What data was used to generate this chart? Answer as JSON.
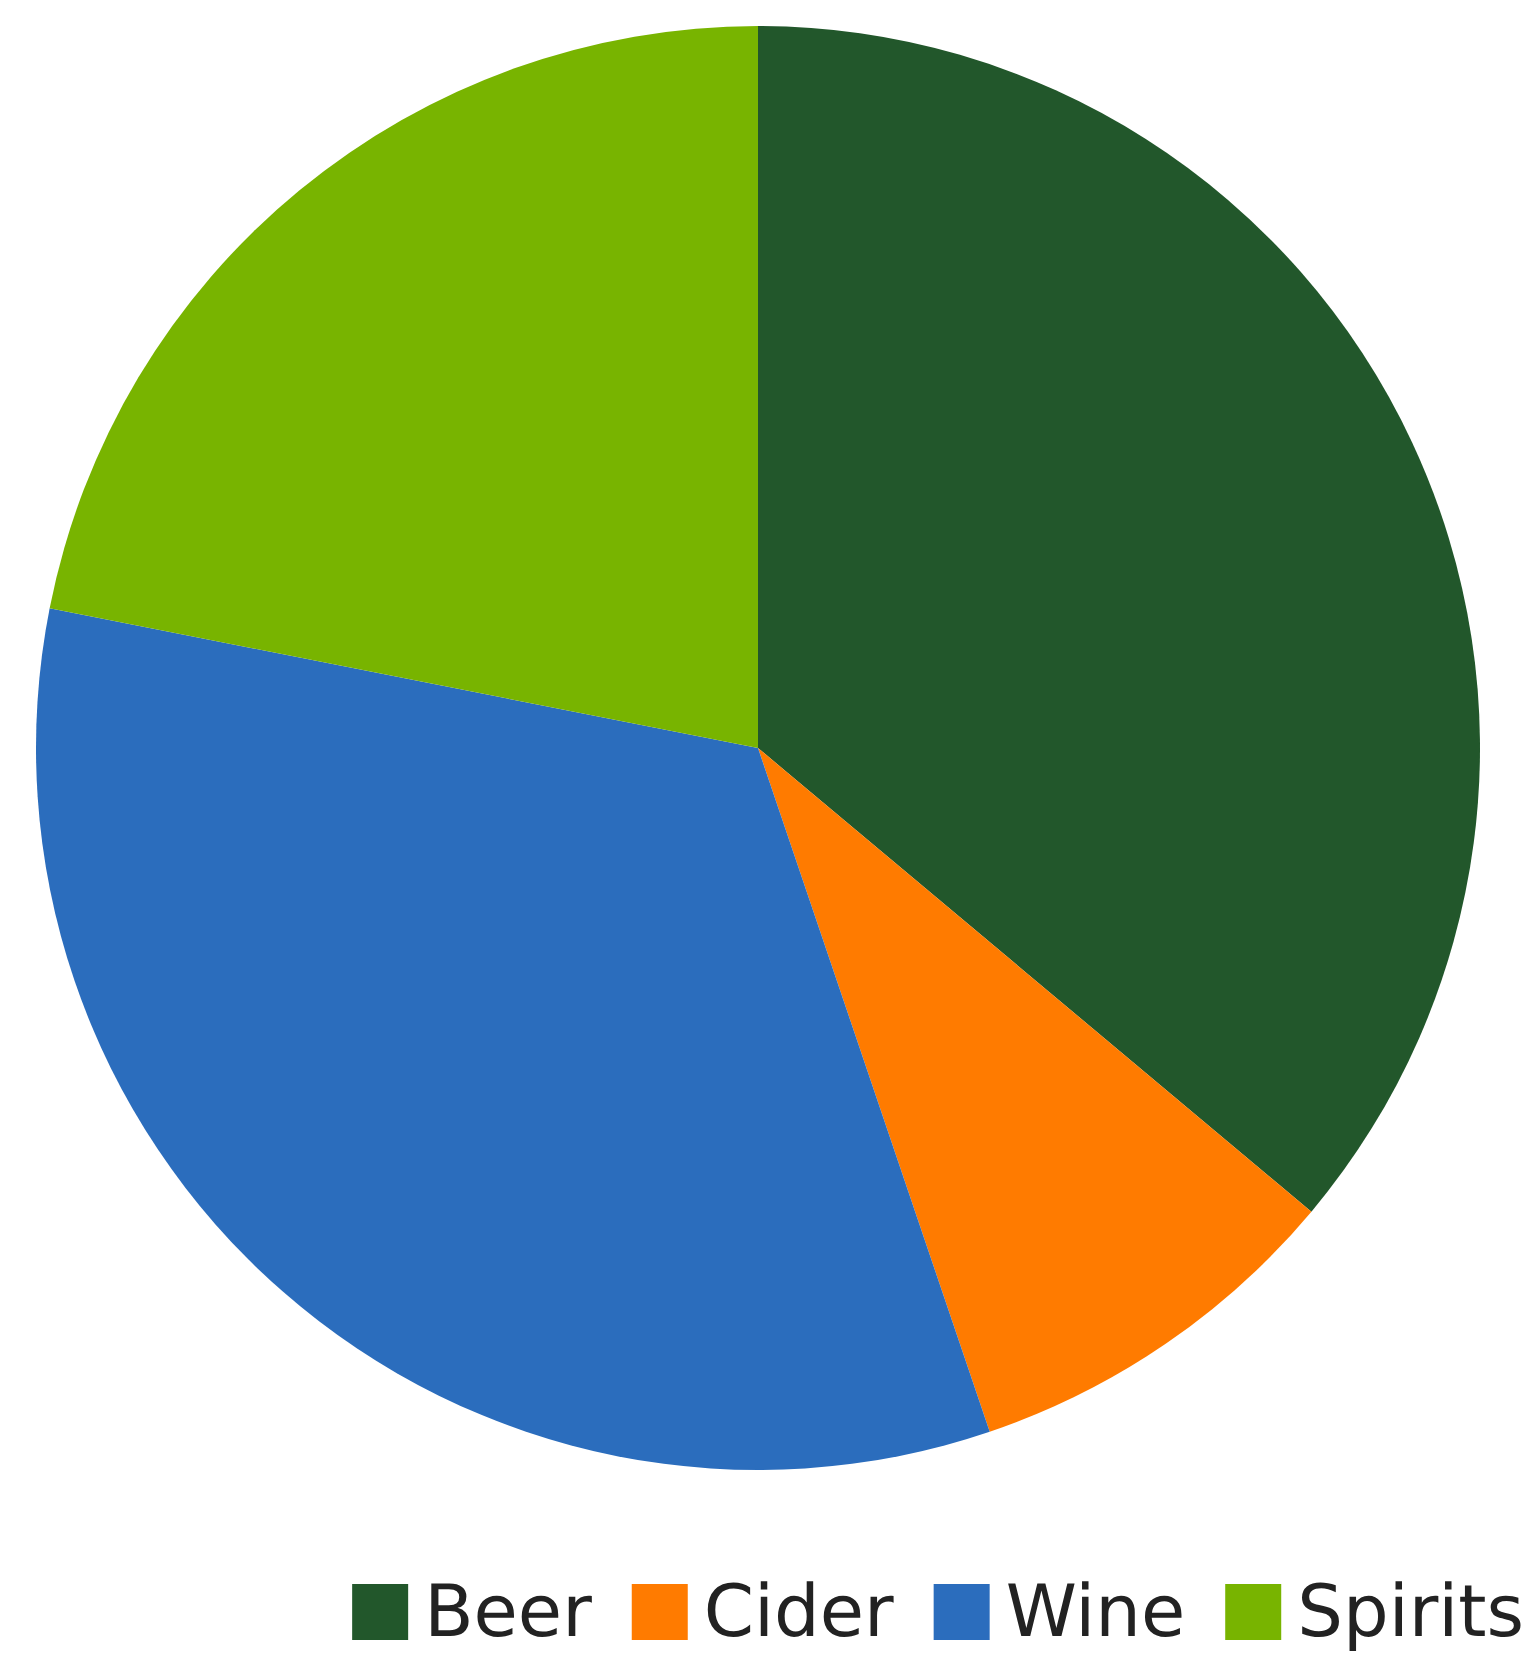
{
  "chart_data": {
    "type": "pie",
    "categories": [
      "Beer",
      "Cider",
      "Wine",
      "Spirits"
    ],
    "values": [
      36.1,
      8.7,
      33.3,
      21.9
    ],
    "colors": [
      "#22572b",
      "#ff7b00",
      "#2b6dbd",
      "#78b400"
    ],
    "legend": "bottom right"
  }
}
